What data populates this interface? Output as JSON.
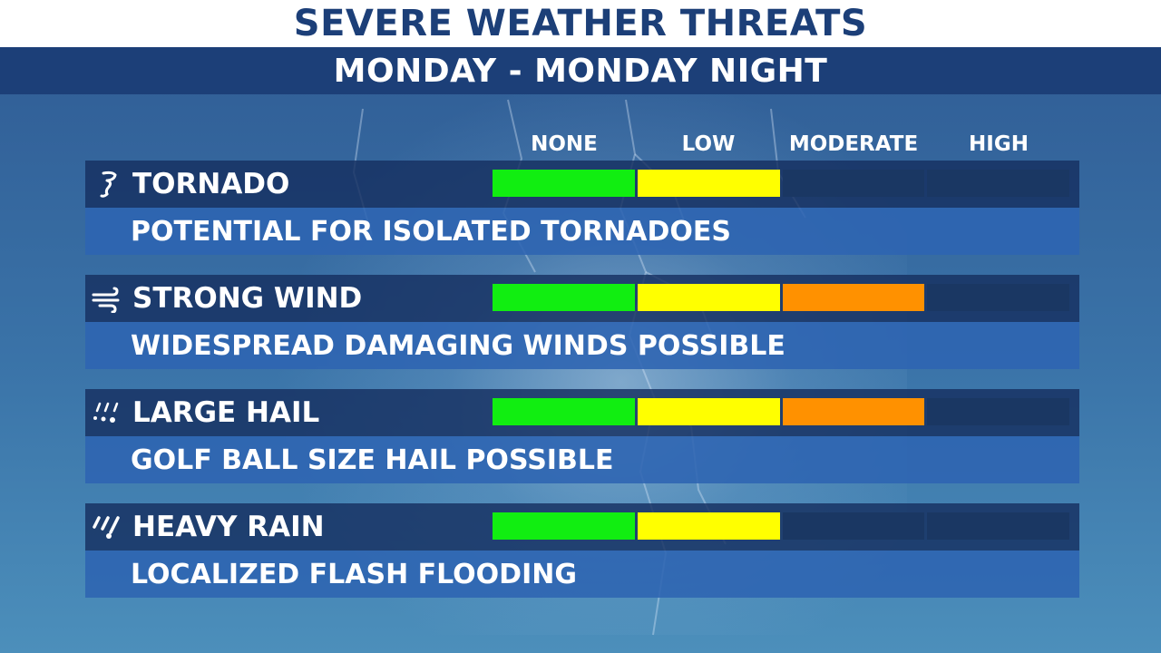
{
  "title": "SEVERE WEATHER THREATS",
  "subtitle": "MONDAY - MONDAY NIGHT",
  "levels": [
    "NONE",
    "LOW",
    "MODERATE",
    "HIGH"
  ],
  "level_colors": {
    "none": "#11ee11",
    "low": "#ffff00",
    "moderate": "#ff9100",
    "high": "#ee1111",
    "empty": "#1a3763"
  },
  "threats": [
    {
      "name": "TORNADO",
      "icon": "tornado-icon",
      "description": "POTENTIAL FOR ISOLATED TORNADOES",
      "level": 2
    },
    {
      "name": "STRONG WIND",
      "icon": "wind-icon",
      "description": "WIDESPREAD DAMAGING WINDS POSSIBLE",
      "level": 3
    },
    {
      "name": "LARGE HAIL",
      "icon": "hail-icon",
      "description": "GOLF BALL SIZE HAIL POSSIBLE",
      "level": 3
    },
    {
      "name": "HEAVY RAIN",
      "icon": "heavy-rain-icon",
      "description": "LOCALIZED FLASH FLOODING",
      "level": 2
    }
  ]
}
